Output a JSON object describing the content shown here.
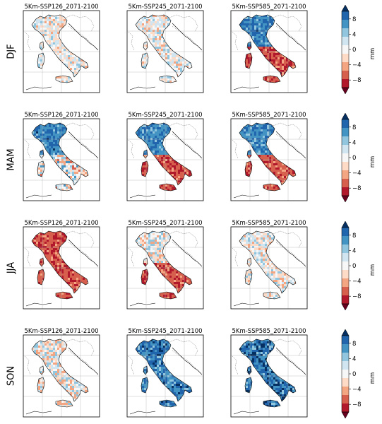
{
  "rows": [
    {
      "season": "DJF",
      "panels": [
        {
          "title": "5Km-SSP126_2071-2100",
          "north": "mixed",
          "south": "mixed",
          "intensity": 0.45
        },
        {
          "title": "5Km-SSP245_2071-2100",
          "north": "mixed",
          "south": "mixed",
          "intensity": 0.5
        },
        {
          "title": "5Km-SSP585_2071-2100",
          "north": "wet",
          "south": "dry",
          "intensity": 0.7
        }
      ]
    },
    {
      "season": "MAM",
      "panels": [
        {
          "title": "5Km-SSP126_2071-2100",
          "north": "wet",
          "south": "mixed",
          "intensity": 0.7
        },
        {
          "title": "5Km-SSP245_2071-2100",
          "north": "wet",
          "south": "dry",
          "intensity": 0.65
        },
        {
          "title": "5Km-SSP585_2071-2100",
          "north": "wet",
          "south": "dry",
          "intensity": 0.55
        }
      ]
    },
    {
      "season": "JJA",
      "panels": [
        {
          "title": "5Km-SSP126_2071-2100",
          "north": "dry",
          "south": "dry",
          "intensity": 0.55
        },
        {
          "title": "5Km-SSP245_2071-2100",
          "north": "mixed",
          "south": "dry",
          "intensity": 0.6
        },
        {
          "title": "5Km-SSP585_2071-2100",
          "north": "mixed",
          "south": "mixed",
          "intensity": 0.5
        }
      ]
    },
    {
      "season": "SON",
      "panels": [
        {
          "title": "5Km-SSP126_2071-2100",
          "north": "mixed",
          "south": "mixed",
          "intensity": 0.6
        },
        {
          "title": "5Km-SSP245_2071-2100",
          "north": "wet",
          "south": "wet",
          "intensity": 0.75
        },
        {
          "title": "5Km-SSP585_2071-2100",
          "north": "wet",
          "south": "wet",
          "intensity": 0.95
        }
      ]
    }
  ],
  "colorbar": {
    "ticks": [
      "8",
      "4",
      "0",
      "−4",
      "−8"
    ],
    "tick_values": [
      8,
      4,
      0,
      -4,
      -8
    ],
    "range": [
      -10,
      10
    ],
    "unit": "mm",
    "colors": [
      "#67001f",
      "#b2182b",
      "#d6604d",
      "#f4a582",
      "#fddbc7",
      "#f7f7f7",
      "#d1e5f0",
      "#92c5de",
      "#4393c3",
      "#2166ac",
      "#053061"
    ]
  },
  "palette": {
    "wet_deep": "#08306b",
    "wet": "#2166ac",
    "wet_light": "#92c5de",
    "neutral": "#f4f4f4",
    "dry_light": "#f4a582",
    "dry": "#d6604d",
    "dry_deep": "#8b0a1f",
    "coast": "#000000",
    "grid": "#b0b0b0"
  }
}
